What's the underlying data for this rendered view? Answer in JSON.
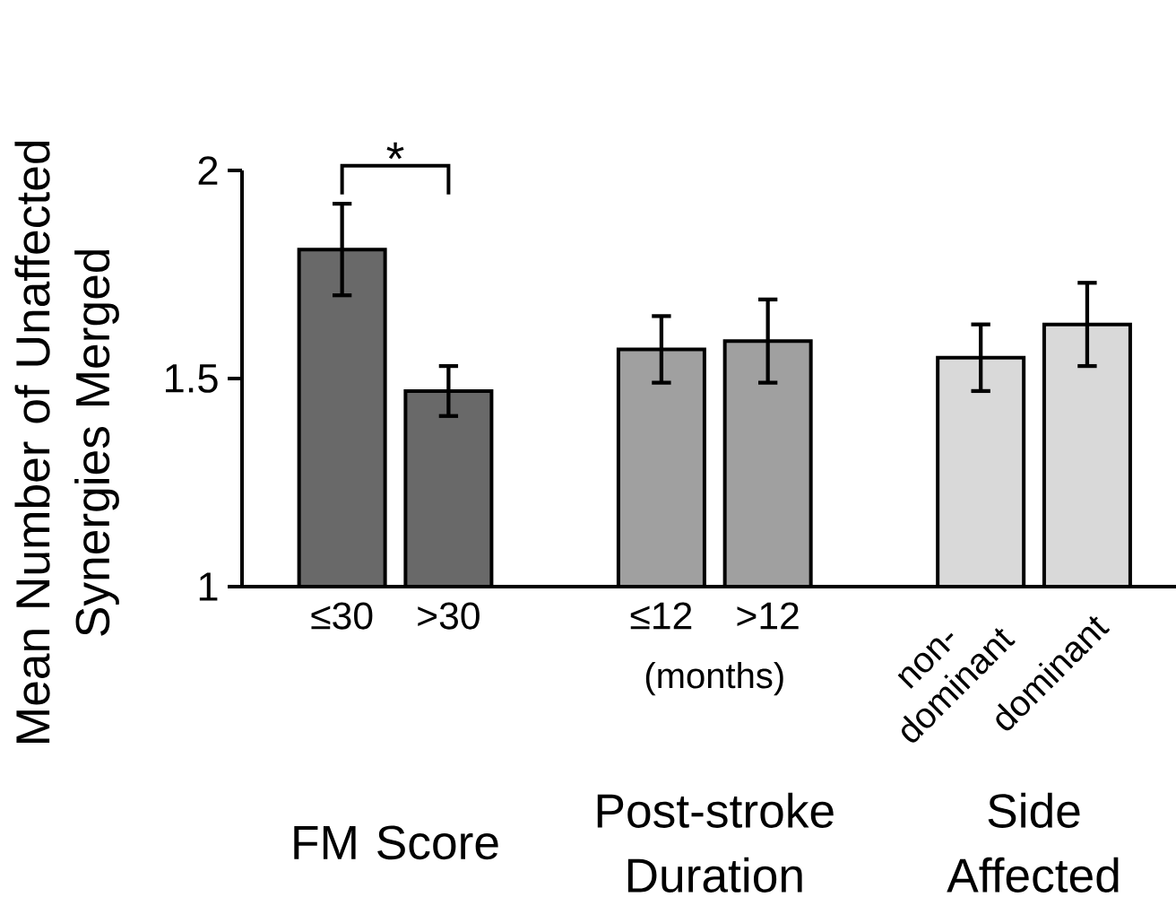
{
  "chart_data": {
    "type": "bar",
    "ylabel": "Mean Number of Unaffected Synergies Merged",
    "categories": [
      "≤30",
      ">30",
      null,
      "≤12",
      ">12",
      null,
      "non-dominant",
      "dominant"
    ],
    "values": [
      1.81,
      1.47,
      null,
      1.57,
      1.59,
      null,
      1.55,
      1.63
    ],
    "errors": [
      0.11,
      0.06,
      null,
      0.08,
      0.1,
      null,
      0.08,
      0.1
    ],
    "colors": [
      "#696969",
      "#696969",
      null,
      "#a0a0a0",
      "#a0a0a0",
      null,
      "#d9d9d9",
      "#d9d9d9"
    ],
    "ylim": [
      1,
      2
    ],
    "yticks": [
      1,
      1.5,
      2
    ],
    "annotations": [
      "FM Score",
      "Post-stroke Duration",
      "Side Affected",
      "(months)",
      "*"
    ]
  }
}
